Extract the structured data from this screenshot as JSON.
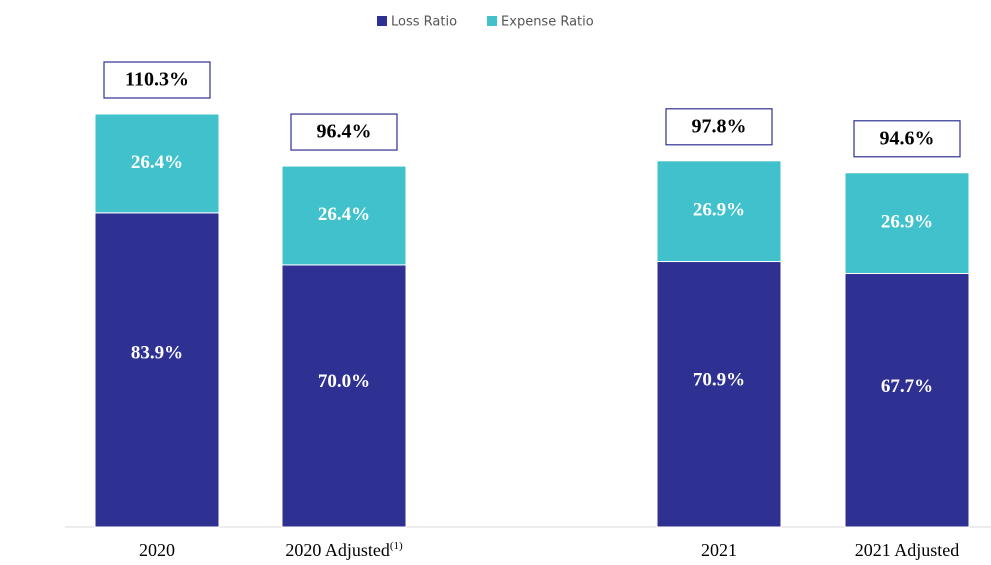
{
  "chart_data": {
    "type": "stacked_bar",
    "categories": [
      "2020",
      "2020 Adjusted",
      "2021",
      "2021 Adjusted"
    ],
    "category_notes": [
      null,
      "(1)",
      null,
      null
    ],
    "series": [
      {
        "name": "Loss Ratio",
        "color": "#2e3192",
        "values": [
          83.9,
          70.0,
          70.9,
          67.7
        ],
        "value_labels": [
          "83.9%",
          "70.0%",
          "70.9%",
          "67.7%"
        ]
      },
      {
        "name": "Expense Ratio",
        "color": "#40c1cb",
        "values": [
          26.4,
          26.4,
          26.9,
          26.9
        ],
        "value_labels": [
          "26.4%",
          "26.4%",
          "26.9%",
          "26.9%"
        ]
      }
    ],
    "totals": [
      110.3,
      96.4,
      97.8,
      94.6
    ],
    "total_labels": [
      "110.3%",
      "96.4%",
      "97.8%",
      "94.6%"
    ],
    "legend": "top"
  }
}
